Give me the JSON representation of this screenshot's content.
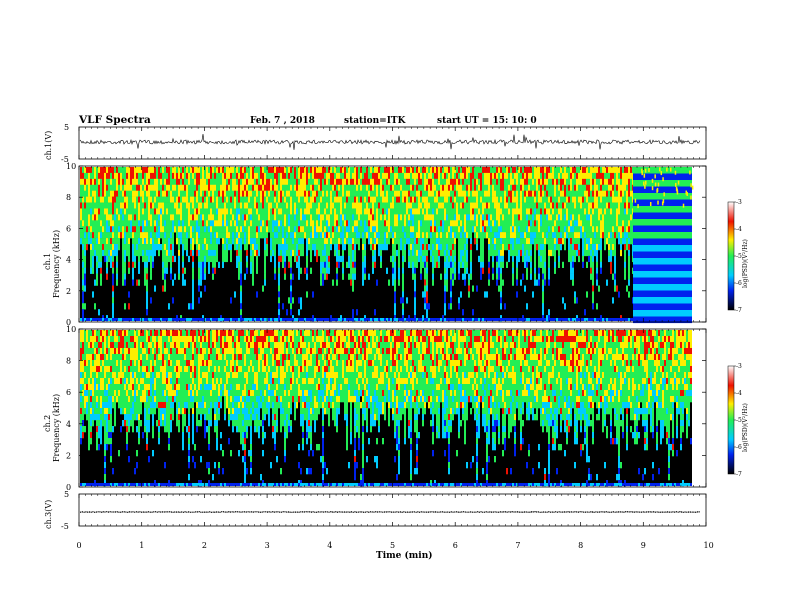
{
  "header": {
    "title": "VLF Spectra",
    "date": "Feb. 7 , 2018",
    "station": "station=ITK",
    "start": "start  UT =   15: 10: 0"
  },
  "colors": {
    "black": "#000000",
    "blue": "#0022ee",
    "cyan": "#00ccff",
    "green": "#22ee55",
    "yellow": "#ffee00",
    "red": "#ee1100"
  },
  "chart_data": [
    {
      "type": "line",
      "panel": "ch1-waveform",
      "ylabel": "ch.1(V)",
      "yticks": [
        "5",
        "-5"
      ],
      "ylim": [
        -5,
        5
      ],
      "xlim": [
        0,
        10
      ],
      "series": [
        {
          "values_approx": "noise around 0 V with spikes"
        }
      ]
    },
    {
      "type": "heatmap",
      "panel": "ch1-spectrogram",
      "ylabel_channel": "ch.1",
      "ylabel": "Frequency  (kHz)",
      "yticks": [
        "0",
        "2",
        "4",
        "6",
        "8",
        "10"
      ],
      "ylim": [
        0,
        10
      ],
      "xlim": [
        0,
        10
      ],
      "colorbar": {
        "label": "log(PSD)(V²/Hz)",
        "ticks": [
          "-3",
          "-4",
          "-5",
          "-6",
          "-7"
        ],
        "range": [
          -7,
          -3
        ]
      }
    },
    {
      "type": "heatmap",
      "panel": "ch2-spectrogram",
      "ylabel_channel": "ch.2",
      "ylabel": "Frequency  (kHz)",
      "yticks": [
        "0",
        "2",
        "4",
        "6",
        "8",
        "10"
      ],
      "ylim": [
        0,
        10
      ],
      "xlim": [
        0,
        10
      ],
      "colorbar": {
        "label": "log(PSD)(V²/Hz)",
        "ticks": [
          "-3",
          "-4",
          "-5",
          "-6",
          "-7"
        ],
        "range": [
          -7,
          -3
        ]
      }
    },
    {
      "type": "line",
      "panel": "ch3-waveform",
      "ylabel": "ch.3(V)",
      "yticks": [
        "5",
        "-5"
      ],
      "ylim": [
        -5,
        5
      ],
      "xlim": [
        0,
        10
      ],
      "series": [
        {
          "values_approx": "flat near -1.5 V"
        }
      ]
    }
  ],
  "xaxis": {
    "label": "Time  (min)",
    "ticks": [
      "0",
      "1",
      "2",
      "3",
      "4",
      "5",
      "6",
      "7",
      "8",
      "9",
      "10"
    ]
  }
}
